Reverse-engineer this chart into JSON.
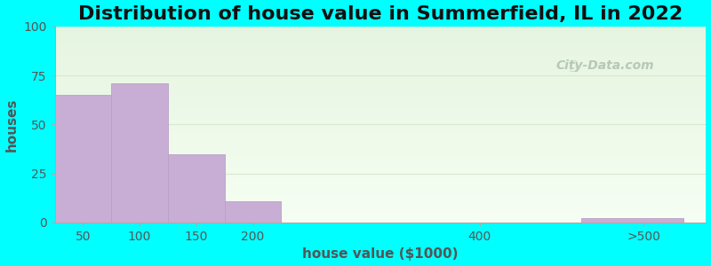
{
  "title": "Distribution of house value in Summerfield, IL in 2022",
  "xlabel": "house value ($1000)",
  "ylabel": "houses",
  "background_color": "#00FFFF",
  "bar_color": "#c8aed4",
  "bar_edgecolor": "#b8a0c8",
  "values": [
    65,
    71,
    35,
    11,
    0,
    2
  ],
  "bar_left_edges": [
    25,
    75,
    125,
    175,
    450,
    490
  ],
  "bar_widths": [
    50,
    50,
    50,
    50,
    50,
    90
  ],
  "xlim": [
    25,
    600
  ],
  "ylim": [
    0,
    100
  ],
  "yticks": [
    0,
    25,
    50,
    75,
    100
  ],
  "xtick_positions": [
    50,
    100,
    150,
    200,
    400,
    545
  ],
  "xtick_labels": [
    "50",
    "100",
    "150",
    "200",
    "400",
    ">500"
  ],
  "title_fontsize": 16,
  "axis_label_fontsize": 11,
  "tick_fontsize": 10,
  "watermark_text": "City-Data.com",
  "watermark_color": "#b8c8b8",
  "grid_color": "#d8e8d0"
}
